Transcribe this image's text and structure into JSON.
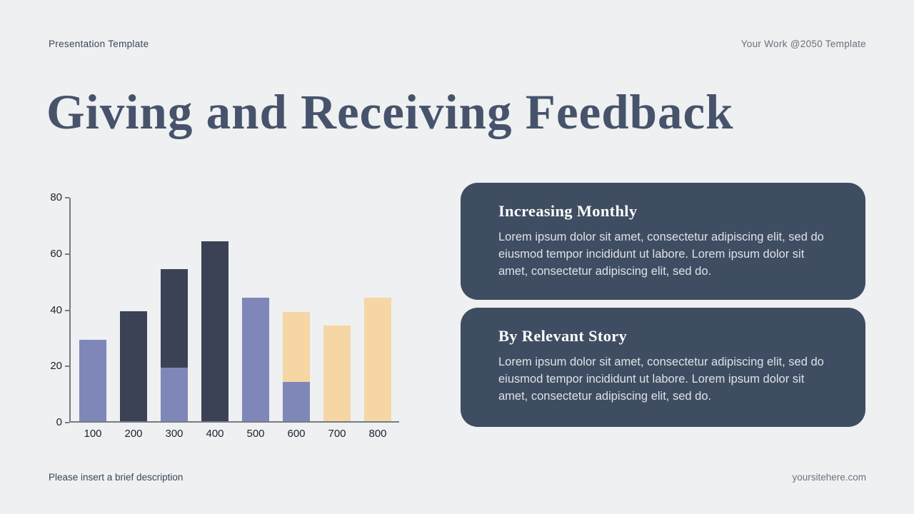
{
  "header": {
    "left": "Presentation Template",
    "right": "Your Work @2050 Template"
  },
  "title": "Giving and Receiving Feedback",
  "chart_data": {
    "type": "bar",
    "stacked": true,
    "title": "",
    "xlabel": "",
    "ylabel": "",
    "categories": [
      "100",
      "200",
      "300",
      "400",
      "500",
      "600",
      "700",
      "800"
    ],
    "series": [
      {
        "name": "purple",
        "color": "#7f87b9",
        "values": [
          29,
          0,
          19,
          0,
          44,
          14,
          0,
          0
        ]
      },
      {
        "name": "dark",
        "color": "#3b4255",
        "values": [
          0,
          39,
          35,
          64,
          0,
          0,
          0,
          0
        ]
      },
      {
        "name": "peach",
        "color": "#f6d6a4",
        "values": [
          0,
          0,
          0,
          0,
          0,
          25,
          34,
          44
        ]
      }
    ],
    "ylim": [
      0,
      80
    ],
    "yticks": [
      0,
      20,
      40,
      60,
      80
    ],
    "grid": false,
    "legend": "none"
  },
  "cards": [
    {
      "title": "Increasing Monthly",
      "body": "Lorem ipsum dolor sit amet, consectetur adipiscing elit, sed do eiusmod tempor incididunt ut labore. Lorem ipsum dolor sit amet, consectetur adipiscing elit, sed do."
    },
    {
      "title": "By Relevant Story",
      "body": "Lorem ipsum dolor sit amet, consectetur adipiscing elit, sed do eiusmod tempor incididunt ut labore. Lorem ipsum dolor sit amet, consectetur adipiscing elit, sed do."
    }
  ],
  "footer": {
    "left": "Please insert a brief description",
    "right": "yoursitehere.com"
  },
  "colors": {
    "background": "#eef0f1",
    "card_background": "#3f4d62",
    "title_text": "#46536b",
    "axis": "#767b84"
  }
}
